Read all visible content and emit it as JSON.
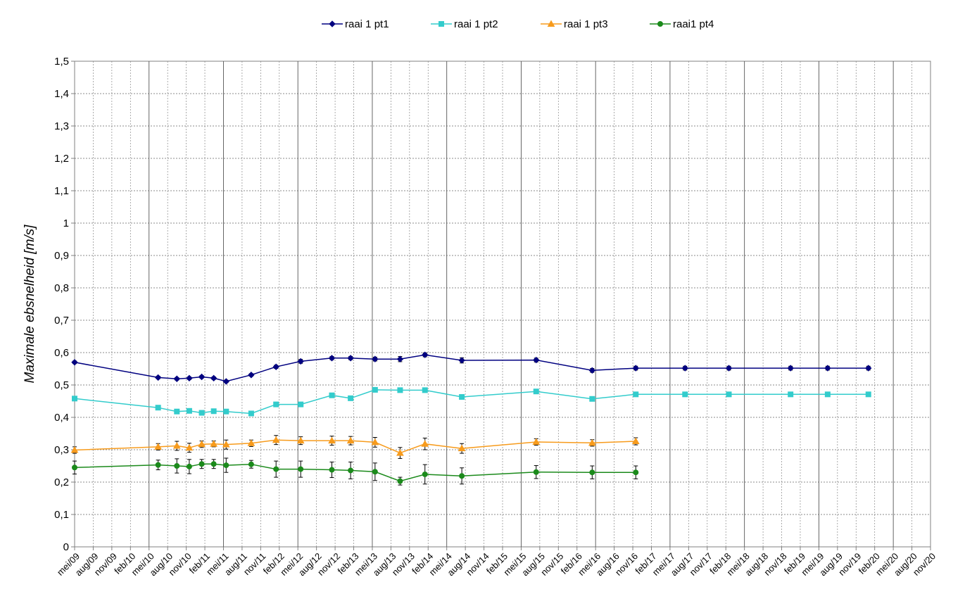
{
  "chart_data": {
    "type": "line",
    "title": "",
    "xlabel": "",
    "ylabel": "Maximale ebsnelheid [m/s]",
    "ylim": [
      0,
      1.5
    ],
    "yticks": [
      "0",
      "0,1",
      "0,2",
      "0,3",
      "0,4",
      "0,5",
      "0,6",
      "0,7",
      "0,8",
      "0,9",
      "1",
      "1,1",
      "1,2",
      "1,3",
      "1,4",
      "1,5"
    ],
    "x_categories": [
      "mei/09",
      "aug/09",
      "nov/09",
      "feb/10",
      "mei/10",
      "aug/10",
      "nov/10",
      "feb/11",
      "mei/11",
      "aug/11",
      "nov/11",
      "feb/12",
      "mei/12",
      "aug/12",
      "nov/12",
      "feb/13",
      "mei/13",
      "aug/13",
      "nov/13",
      "feb/14",
      "mei/14",
      "aug/14",
      "nov/14",
      "feb/15",
      "mei/15",
      "aug/15",
      "nov/15",
      "feb/16",
      "mei/16",
      "aug/16",
      "nov/16",
      "feb/17",
      "mei/17",
      "aug/17",
      "nov/17",
      "feb/18",
      "mei/18",
      "aug/18",
      "nov/18",
      "feb/19",
      "mei/19",
      "aug/19",
      "nov/19",
      "feb/20",
      "mei/20",
      "aug/20",
      "nov/20"
    ],
    "grid": true,
    "legend_position": "top",
    "series": [
      {
        "name": "raai 1 pt1",
        "color": "#000080",
        "marker": "diamond",
        "x": [
          "2009-05-01",
          "2010-06-15",
          "2010-09-15",
          "2010-11-15",
          "2011-01-15",
          "2011-03-15",
          "2011-05-15",
          "2011-09-15",
          "2012-01-15",
          "2012-05-15",
          "2012-10-15",
          "2013-01-15",
          "2013-05-15",
          "2013-09-15",
          "2014-01-15",
          "2014-07-15",
          "2015-07-15",
          "2016-04-15",
          "2016-11-15",
          "2017-07-15",
          "2018-02-15",
          "2018-12-15",
          "2019-06-15",
          "2020-01-01"
        ],
        "y": [
          0.57,
          0.523,
          0.519,
          0.521,
          0.525,
          0.521,
          0.511,
          0.531,
          0.556,
          0.573,
          0.583,
          0.583,
          0.58,
          0.58,
          0.593,
          0.576,
          0.577,
          0.545,
          0.552,
          0.552,
          0.552,
          0.552,
          0.552,
          0.552
        ],
        "err": [
          0.004,
          0.004,
          0.004,
          0.004,
          0.004,
          0.004,
          0.004,
          0.004,
          0.005,
          0.006,
          0.005,
          0.005,
          0.006,
          0.008,
          0.006,
          0.008,
          0.006,
          0.006,
          0.006,
          0.006,
          0.006,
          0.006,
          0.006,
          0.006
        ]
      },
      {
        "name": "raai 1 pt2",
        "color": "#33CCCC",
        "marker": "square",
        "x": [
          "2009-05-01",
          "2010-06-15",
          "2010-09-15",
          "2010-11-15",
          "2011-01-15",
          "2011-03-15",
          "2011-05-15",
          "2011-09-15",
          "2012-01-15",
          "2012-05-15",
          "2012-10-15",
          "2013-01-15",
          "2013-05-15",
          "2013-09-15",
          "2014-01-15",
          "2014-07-15",
          "2015-07-15",
          "2016-04-15",
          "2016-11-15",
          "2017-07-15",
          "2018-02-15",
          "2018-12-15",
          "2019-06-15",
          "2020-01-01"
        ],
        "y": [
          0.458,
          0.43,
          0.418,
          0.42,
          0.414,
          0.419,
          0.418,
          0.412,
          0.44,
          0.44,
          0.468,
          0.459,
          0.485,
          0.484,
          0.484,
          0.463,
          0.48,
          0.457,
          0.471,
          0.471,
          0.471,
          0.471,
          0.471,
          0.471
        ],
        "err": [
          0.004,
          0.004,
          0.004,
          0.004,
          0.004,
          0.004,
          0.004,
          0.004,
          0.005,
          0.005,
          0.005,
          0.005,
          0.005,
          0.005,
          0.005,
          0.005,
          0.005,
          0.005,
          0.005,
          0.005,
          0.005,
          0.005,
          0.005,
          0.005
        ]
      },
      {
        "name": "raai 1 pt3",
        "color": "#F79B1C",
        "marker": "triangle",
        "x": [
          "2009-05-01",
          "2010-06-15",
          "2010-09-15",
          "2010-11-15",
          "2011-01-15",
          "2011-03-15",
          "2011-05-15",
          "2011-09-15",
          "2012-01-15",
          "2012-05-15",
          "2012-10-15",
          "2013-01-15",
          "2013-05-15",
          "2013-09-15",
          "2014-01-15",
          "2014-07-15",
          "2015-07-15",
          "2016-04-15",
          "2016-11-15"
        ],
        "y": [
          0.299,
          0.309,
          0.312,
          0.306,
          0.317,
          0.318,
          0.316,
          0.32,
          0.33,
          0.328,
          0.328,
          0.328,
          0.323,
          0.29,
          0.318,
          0.304,
          0.324,
          0.321,
          0.326
        ],
        "err": [
          0.01,
          0.01,
          0.014,
          0.014,
          0.01,
          0.009,
          0.014,
          0.01,
          0.014,
          0.012,
          0.014,
          0.013,
          0.015,
          0.017,
          0.018,
          0.015,
          0.01,
          0.01,
          0.011
        ]
      },
      {
        "name": "raai1 pt4",
        "color": "#1B8A1B",
        "marker": "circle",
        "x": [
          "2009-05-01",
          "2010-06-15",
          "2010-09-15",
          "2010-11-15",
          "2011-01-15",
          "2011-03-15",
          "2011-05-15",
          "2011-09-15",
          "2012-01-15",
          "2012-05-15",
          "2012-10-15",
          "2013-01-15",
          "2013-05-15",
          "2013-09-15",
          "2014-01-15",
          "2014-07-15",
          "2015-07-15",
          "2016-04-15",
          "2016-11-15"
        ],
        "y": [
          0.245,
          0.253,
          0.25,
          0.248,
          0.256,
          0.256,
          0.252,
          0.255,
          0.24,
          0.24,
          0.238,
          0.236,
          0.232,
          0.203,
          0.224,
          0.219,
          0.231,
          0.23,
          0.23
        ],
        "err": [
          0.02,
          0.015,
          0.022,
          0.022,
          0.014,
          0.014,
          0.022,
          0.012,
          0.025,
          0.025,
          0.024,
          0.026,
          0.027,
          0.012,
          0.03,
          0.025,
          0.02,
          0.02,
          0.02
        ]
      }
    ]
  }
}
